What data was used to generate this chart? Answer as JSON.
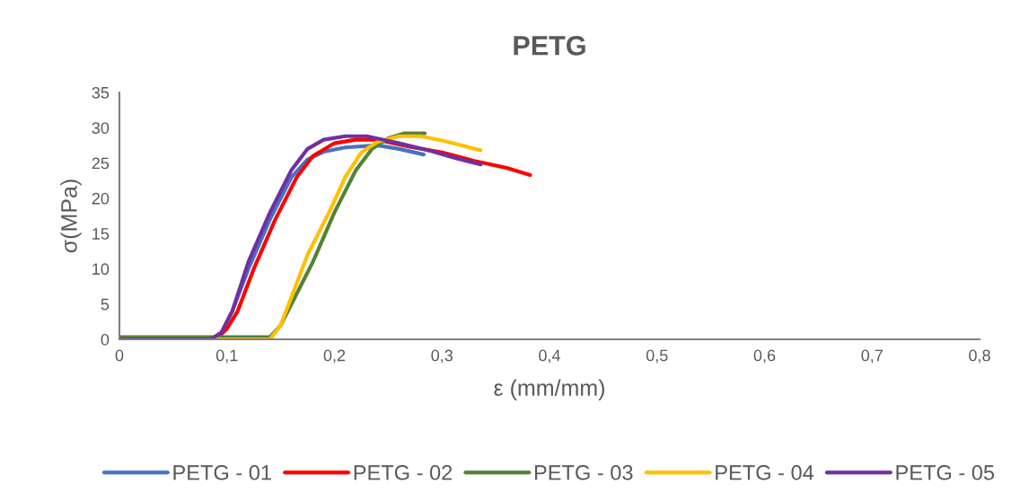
{
  "chart_data": {
    "type": "line",
    "title": "PETG",
    "xlabel": "ε (mm/mm)",
    "ylabel": "σ(MPa)",
    "xlim": [
      0,
      0.8
    ],
    "xticks": [
      {
        "value": 0,
        "label": "0"
      },
      {
        "value": 0.1,
        "label": "0,1"
      },
      {
        "value": 0.2,
        "label": "0,2"
      },
      {
        "value": 0.3,
        "label": "0,3"
      },
      {
        "value": 0.4,
        "label": "0,4"
      },
      {
        "value": 0.5,
        "label": "0,5"
      },
      {
        "value": 0.6,
        "label": "0,6"
      },
      {
        "value": 0.7,
        "label": "0,7"
      },
      {
        "value": 0.8,
        "label": "0,8"
      }
    ],
    "ylim": [
      0,
      35
    ],
    "yticks": [
      0,
      5,
      10,
      15,
      20,
      25,
      30,
      35
    ],
    "grid": false,
    "legend": "bottom",
    "marker": "none",
    "line_style": "solid",
    "series": [
      {
        "name": "PETG - 01",
        "color": "#4472c4",
        "x": [
          0.095,
          0.105,
          0.12,
          0.14,
          0.16,
          0.175,
          0.19,
          0.21,
          0.24,
          0.26,
          0.283
        ],
        "values": [
          1,
          4,
          10,
          17,
          23,
          25.5,
          26.6,
          27.2,
          27.5,
          27,
          26.2
        ]
      },
      {
        "name": "PETG - 02",
        "color": "#ff0000",
        "x": [
          0,
          0.09,
          0.1,
          0.11,
          0.125,
          0.145,
          0.165,
          0.18,
          0.2,
          0.22,
          0.24,
          0.27,
          0.3,
          0.33,
          0.36,
          0.382
        ],
        "values": [
          0,
          0,
          1.5,
          4,
          10,
          17,
          23,
          26,
          27.8,
          28.3,
          28.3,
          27.3,
          26.5,
          25.3,
          24.3,
          23.3
        ]
      },
      {
        "name": "PETG - 03",
        "color": "#548235",
        "x": [
          0,
          0.14,
          0.15,
          0.16,
          0.18,
          0.2,
          0.22,
          0.235,
          0.25,
          0.265,
          0.284
        ],
        "values": [
          0.3,
          0.3,
          2,
          5,
          11,
          18,
          24,
          27,
          28.5,
          29.2,
          29.2
        ]
      },
      {
        "name": "PETG - 04",
        "color": "#ffc000",
        "x": [
          0,
          0.14,
          0.15,
          0.16,
          0.175,
          0.195,
          0.21,
          0.225,
          0.24,
          0.26,
          0.28,
          0.3,
          0.336
        ],
        "values": [
          0,
          0,
          2,
          6,
          12,
          18,
          23,
          26.5,
          28,
          28.8,
          28.8,
          28.2,
          26.8
        ]
      },
      {
        "name": "PETG - 05",
        "color": "#7030a0",
        "x": [
          0,
          0.085,
          0.095,
          0.105,
          0.12,
          0.14,
          0.16,
          0.175,
          0.19,
          0.21,
          0.23,
          0.26,
          0.29,
          0.31,
          0.336
        ],
        "values": [
          0,
          0,
          1,
          4,
          11,
          18,
          24,
          27,
          28.3,
          28.8,
          28.8,
          27.8,
          26.7,
          25.8,
          24.8
        ]
      }
    ]
  }
}
